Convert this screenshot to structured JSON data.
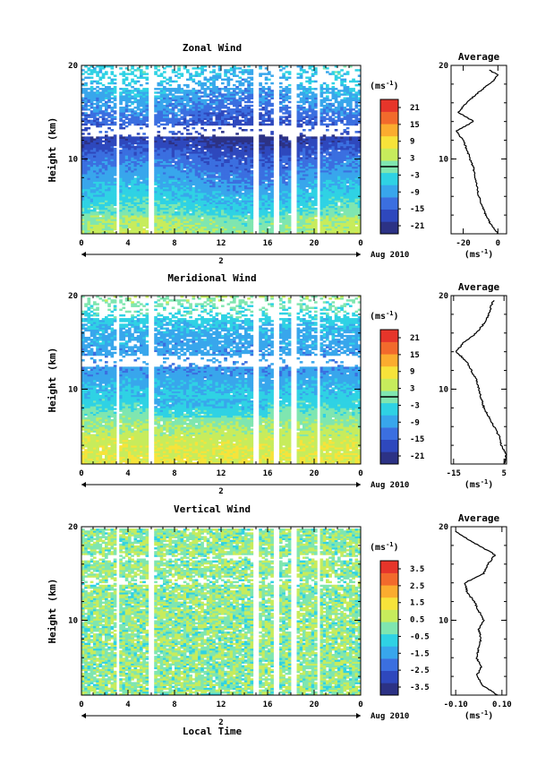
{
  "colormap": [
    "#2c3285",
    "#2e48bd",
    "#3b6fe0",
    "#38a6ec",
    "#2fd2e4",
    "#7fe6b0",
    "#c7ec5c",
    "#f7e33a",
    "#fbac2f",
    "#f26a2c",
    "#e6352a"
  ],
  "date_label": "Aug 2010",
  "day_label": "2",
  "time_label": "Local Time",
  "chart_data": [
    {
      "type": "heatmap",
      "title": "Zonal Wind",
      "xlabel": "",
      "ylabel": "Height (km)",
      "x_ticks": [
        "0",
        "4",
        "8",
        "12",
        "16",
        "20",
        "0"
      ],
      "xlim": [
        0,
        24
      ],
      "y_ticks": [
        "20",
        "10"
      ],
      "ylim": [
        2,
        20
      ],
      "colorbar": {
        "unit": "(ms",
        "unit_sup": "-1",
        "unit_close": ")",
        "levels": [
          "21",
          "15",
          "9",
          "3",
          "-3",
          "-9",
          "-15",
          "-21"
        ],
        "range": [
          -24,
          24
        ],
        "contour_at": 0
      },
      "average_profile": {
        "title": "Average",
        "unit": "(ms",
        "unit_sup": "-1",
        "unit_close": ")",
        "x_ticks": [
          "-20",
          "0"
        ],
        "xlim": [
          -27,
          5
        ],
        "y_ticks": [
          "20",
          "10"
        ],
        "heights": [
          2,
          3,
          4,
          5,
          6,
          7,
          8,
          9,
          10,
          11,
          12,
          13,
          14,
          15,
          16,
          17,
          18,
          18.5,
          19,
          19.5
        ],
        "values": [
          0,
          -4,
          -7,
          -9,
          -11,
          -12,
          -13,
          -14,
          -16,
          -18,
          -20,
          -24,
          -14,
          -23,
          -18,
          -12,
          -5,
          -2,
          0,
          -5
        ]
      }
    },
    {
      "type": "heatmap",
      "title": "Meridional Wind",
      "xlabel": "",
      "ylabel": "Height (km)",
      "x_ticks": [
        "0",
        "4",
        "8",
        "12",
        "16",
        "20",
        "0"
      ],
      "xlim": [
        0,
        24
      ],
      "y_ticks": [
        "20",
        "10"
      ],
      "ylim": [
        2,
        20
      ],
      "colorbar": {
        "unit": "(ms",
        "unit_sup": "-1",
        "unit_close": ")",
        "levels": [
          "21",
          "15",
          "9",
          "3",
          "-3",
          "-9",
          "-15",
          "-21"
        ],
        "range": [
          -24,
          24
        ],
        "contour_at": 0
      },
      "average_profile": {
        "title": "Average",
        "unit": "(ms",
        "unit_sup": "-1",
        "unit_close": ")",
        "x_ticks": [
          "-15",
          "5"
        ],
        "xlim": [
          -16,
          6
        ],
        "y_ticks": [
          "20",
          "10"
        ],
        "heights": [
          2,
          3,
          4,
          5,
          6,
          7,
          8,
          9,
          10,
          11,
          12,
          13,
          14,
          15,
          16,
          17,
          18,
          19,
          19.5
        ],
        "values": [
          5,
          6,
          4,
          3,
          1,
          -1,
          -3,
          -4,
          -5,
          -6,
          -8,
          -10,
          -14,
          -11,
          -6,
          -3,
          -1,
          0,
          1
        ]
      }
    },
    {
      "type": "heatmap",
      "title": "Vertical Wind",
      "xlabel": "Local Time",
      "ylabel": "Height (km)",
      "x_ticks": [
        "0",
        "4",
        "8",
        "12",
        "16",
        "20",
        "0"
      ],
      "xlim": [
        0,
        24
      ],
      "y_ticks": [
        "20",
        "10"
      ],
      "ylim": [
        2,
        20
      ],
      "colorbar": {
        "unit": "(ms",
        "unit_sup": "-1",
        "unit_close": ")",
        "levels": [
          "3.5",
          "2.5",
          "1.5",
          "0.5",
          "-0.5",
          "-1.5",
          "-2.5",
          "-3.5"
        ],
        "range": [
          -4,
          4
        ],
        "contour_at": null
      },
      "average_profile": {
        "title": "Average",
        "unit": "(ms",
        "unit_sup": "-1",
        "unit_close": ")",
        "x_ticks": [
          "-0.10",
          "0.10"
        ],
        "xlim": [
          -0.12,
          0.12
        ],
        "y_ticks": [
          "20",
          "10"
        ],
        "heights": [
          2,
          3,
          4,
          5,
          6,
          7,
          8,
          9,
          10,
          11,
          12,
          13,
          14,
          15,
          16,
          17,
          18,
          19,
          19.5
        ],
        "values": [
          0.08,
          0.02,
          -0.01,
          0.01,
          -0.01,
          0.0,
          0.01,
          0.0,
          0.02,
          0.0,
          -0.02,
          -0.05,
          -0.06,
          0.02,
          0.04,
          0.07,
          0.0,
          -0.07,
          -0.1
        ]
      }
    }
  ]
}
